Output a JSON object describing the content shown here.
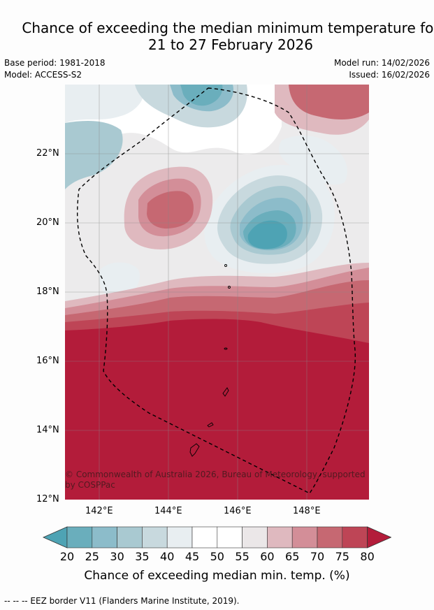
{
  "title_line1": "Chance of exceeding the median minimum temperature for",
  "title_line2": "21 to 27 February 2026",
  "base_period": "Base period: 1981-2018",
  "model": "Model: ACCESS-S2",
  "model_run": "Model run: 14/02/2026",
  "issued": "Issued: 16/02/2026",
  "lat_labels": [
    "22°N",
    "20°N",
    "18°N",
    "16°N",
    "14°N",
    "12°N"
  ],
  "lon_labels": [
    "142°E",
    "144°E",
    "146°E",
    "148°E"
  ],
  "copyright": "© Commonwealth of Australia 2026, Bureau of Meteorology, supported by COSPPac",
  "colorbar": {
    "ticks": [
      "20",
      "25",
      "30",
      "35",
      "40",
      "45",
      "50",
      "55",
      "60",
      "65",
      "70",
      "75",
      "80"
    ],
    "label": "Chance of exceeding median min. temp. (%)",
    "colors": [
      "#4ea3b4",
      "#6aaebc",
      "#8cbcca",
      "#a9c9d1",
      "#c8d9de",
      "#e8eef1",
      "#ffffff",
      "#ffffff",
      "#ebe7e8",
      "#dfb9bf",
      "#d38e98",
      "#c66872",
      "#be4556",
      "#b31c3a"
    ]
  },
  "footer": "--  --  -- EEZ border V11 (Flanders Marine Institute, 2019)."
}
